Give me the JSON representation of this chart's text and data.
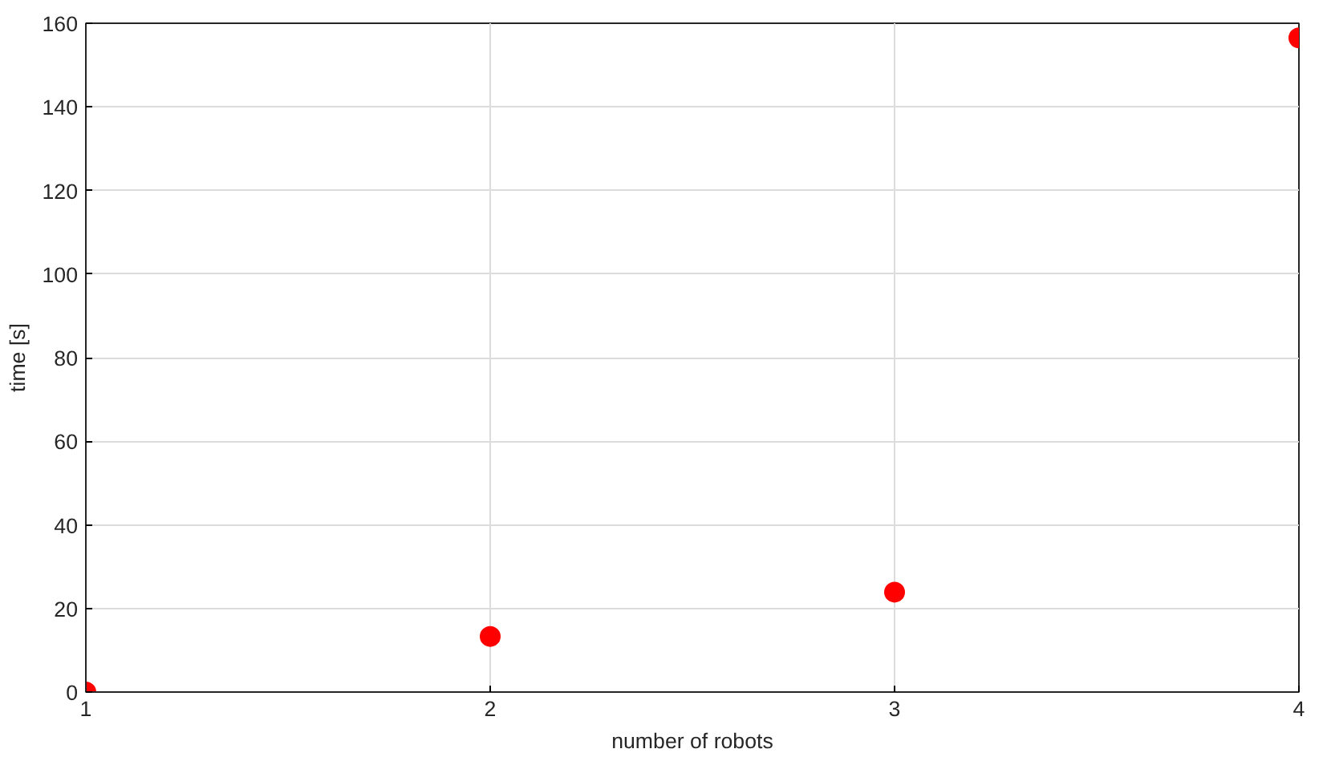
{
  "chart_data": {
    "type": "scatter",
    "xlabel": "number of robots",
    "ylabel": "time [s]",
    "x": [
      1,
      2,
      3,
      4
    ],
    "series": [
      {
        "color": "#ff0000",
        "values": [
          0,
          13.3,
          23.9,
          156.5
        ]
      }
    ],
    "xlim": [
      1,
      4
    ],
    "xticks": [
      1,
      2,
      3,
      4
    ],
    "ylim": [
      0,
      160
    ],
    "yticks": [
      0,
      20,
      40,
      60,
      80,
      100,
      120,
      140,
      160
    ],
    "grid": true,
    "marker": "circle"
  }
}
